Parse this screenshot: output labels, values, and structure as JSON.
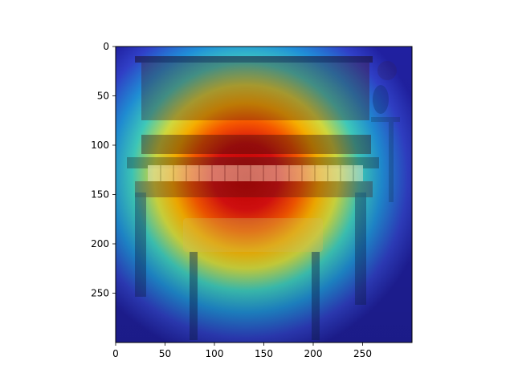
{
  "chart_data": {
    "type": "heatmap",
    "title": "",
    "xlabel": "",
    "ylabel": "",
    "xlim": [
      0,
      300
    ],
    "ylim": [
      300,
      0
    ],
    "x_ticks": [
      0,
      50,
      100,
      150,
      200,
      250
    ],
    "y_ticks": [
      0,
      50,
      100,
      150,
      200,
      250
    ],
    "x_tick_labels": [
      "0",
      "50",
      "100",
      "150",
      "200",
      "250"
    ],
    "y_tick_labels": [
      "0",
      "50",
      "100",
      "150",
      "200",
      "250"
    ],
    "grid": false,
    "legend": "none",
    "colormap": "jet",
    "overlay_image": "upright piano with bench",
    "attention_center": [
      135,
      130
    ],
    "colors": {
      "background": "#ffffff",
      "axis": "#000000",
      "low": "#1a1aa8",
      "high": "#d00000"
    }
  }
}
